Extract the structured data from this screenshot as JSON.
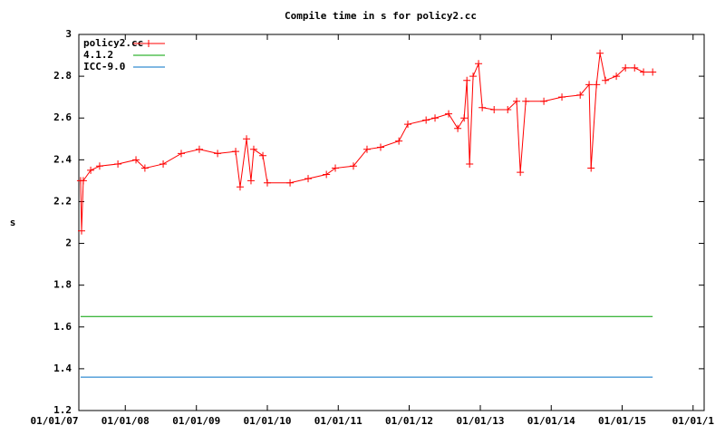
{
  "chart_data": {
    "type": "line",
    "title": "Compile time in s for policy2.cc",
    "ylabel": "s",
    "xlim": [
      "2007-05-07",
      "2016-02-27"
    ],
    "xticks": [
      {
        "value": "2007-01-01",
        "label": "01/01/07"
      },
      {
        "value": "2008-01-01",
        "label": "01/01/08"
      },
      {
        "value": "2009-01-01",
        "label": "01/01/09"
      },
      {
        "value": "2010-01-01",
        "label": "01/01/10"
      },
      {
        "value": "2011-01-01",
        "label": "01/01/11"
      },
      {
        "value": "2012-01-01",
        "label": "01/01/12"
      },
      {
        "value": "2013-01-01",
        "label": "01/01/13"
      },
      {
        "value": "2014-01-01",
        "label": "01/01/14"
      },
      {
        "value": "2015-01-01",
        "label": "01/01/15"
      },
      {
        "value": "2016-01-01",
        "label": "01/01/1"
      }
    ],
    "ylim": [
      1.2,
      3
    ],
    "yticks": [
      1.2,
      1.4,
      1.6,
      1.8,
      2,
      2.2,
      2.4,
      2.6,
      2.8,
      3
    ],
    "legend": "top-left",
    "series": [
      {
        "name": "policy2.cc",
        "color": "#ff0000",
        "markers": true,
        "x": [
          "2007-05-16",
          "2007-05-21",
          "2007-05-30",
          "2007-07-07",
          "2007-08-22",
          "2007-11-24",
          "2008-02-25",
          "2008-04-11",
          "2008-07-14",
          "2008-10-15",
          "2009-01-16",
          "2009-04-20",
          "2009-07-22",
          "2009-08-14",
          "2009-09-16",
          "2009-10-09",
          "2009-10-23",
          "2009-12-09",
          "2010-01-01",
          "2010-04-28",
          "2010-07-30",
          "2010-11-01",
          "2010-12-17",
          "2011-03-20",
          "2011-05-29",
          "2011-08-07",
          "2011-11-09",
          "2011-12-25",
          "2012-03-28",
          "2012-05-13",
          "2012-07-22",
          "2012-09-07",
          "2012-10-10",
          "2012-10-24",
          "2012-11-07",
          "2012-11-25",
          "2012-12-23",
          "2013-01-11",
          "2013-03-13",
          "2013-05-22",
          "2013-07-07",
          "2013-07-26",
          "2013-08-23",
          "2013-11-24",
          "2014-02-25",
          "2014-05-30",
          "2014-07-15",
          "2014-07-25",
          "2014-08-22",
          "2014-09-09",
          "2014-10-07",
          "2014-12-02",
          "2015-01-18",
          "2015-03-06",
          "2015-04-21",
          "2015-06-07"
        ],
        "values": [
          2.3,
          2.06,
          2.3,
          2.35,
          2.37,
          2.38,
          2.4,
          2.36,
          2.38,
          2.43,
          2.45,
          2.43,
          2.44,
          2.27,
          2.5,
          2.3,
          2.45,
          2.42,
          2.29,
          2.29,
          2.31,
          2.33,
          2.36,
          2.37,
          2.45,
          2.46,
          2.49,
          2.57,
          2.59,
          2.6,
          2.62,
          2.55,
          2.6,
          2.78,
          2.38,
          2.8,
          2.86,
          2.65,
          2.64,
          2.64,
          2.68,
          2.34,
          2.68,
          2.68,
          2.7,
          2.71,
          2.76,
          2.36,
          2.76,
          2.91,
          2.78,
          2.8,
          2.84,
          2.84,
          2.82,
          2.82
        ]
      },
      {
        "name": "4.1.2",
        "color": "#00a000",
        "markers": false,
        "x": [
          "2007-05-16",
          "2015-06-07"
        ],
        "values": [
          1.65,
          1.65
        ]
      },
      {
        "name": "ICC-9.0",
        "color": "#0072c6",
        "markers": false,
        "x": [
          "2007-05-16",
          "2015-06-07"
        ],
        "values": [
          1.36,
          1.36
        ]
      }
    ]
  }
}
